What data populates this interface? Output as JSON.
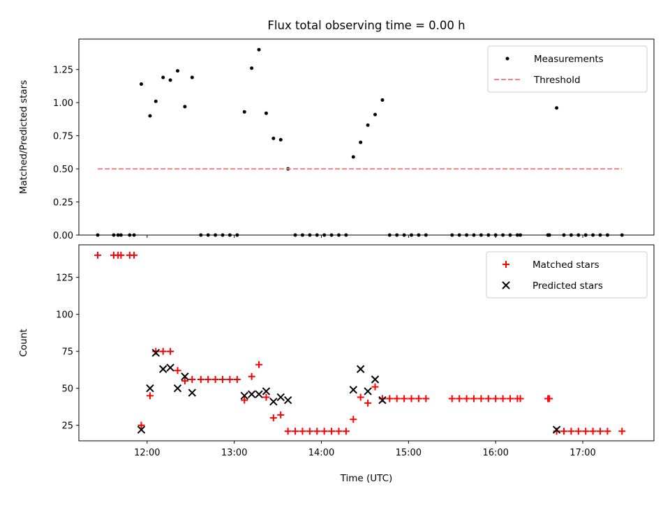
{
  "figure_title": "Flux total observing time = 0.00 h",
  "chart_data": [
    {
      "type": "scatter",
      "title": "Flux total observing time = 0.00 h",
      "ylabel": "Matched/Predicted stars",
      "xlabel": "",
      "xlim": [
        "11:13",
        "17:49"
      ],
      "ylim": [
        0,
        1.48
      ],
      "yticks": [
        0.0,
        0.25,
        0.5,
        0.75,
        1.0,
        1.25
      ],
      "ytick_labels": [
        "0.00",
        "0.25",
        "0.50",
        "0.75",
        "1.00",
        "1.25"
      ],
      "xticks": [
        "12:00",
        "13:00",
        "14:00",
        "15:00",
        "16:00",
        "17:00"
      ],
      "show_xtick_labels": false,
      "legend": {
        "placement": "upper right",
        "entries": [
          "Measurements",
          "Threshold"
        ]
      },
      "grid": false,
      "series": [
        {
          "name": "Measurements",
          "style": "dot",
          "color": "#000000",
          "points": [
            [
              "11:26",
              0
            ],
            [
              "11:37",
              0
            ],
            [
              "11:40",
              0
            ],
            [
              "11:42",
              0
            ],
            [
              "11:48",
              0
            ],
            [
              "11:51",
              0
            ],
            [
              "11:56",
              1.14
            ],
            [
              "12:02",
              0.9
            ],
            [
              "12:06",
              1.01
            ],
            [
              "12:11",
              1.19
            ],
            [
              "12:16",
              1.17
            ],
            [
              "12:21",
              1.24
            ],
            [
              "12:26",
              0.97
            ],
            [
              "12:31",
              1.19
            ],
            [
              "12:37",
              0
            ],
            [
              "12:42",
              0
            ],
            [
              "12:47",
              0
            ],
            [
              "12:52",
              0
            ],
            [
              "12:57",
              0
            ],
            [
              "13:02",
              0
            ],
            [
              "13:07",
              0.93
            ],
            [
              "13:12",
              1.26
            ],
            [
              "13:17",
              1.4
            ],
            [
              "13:22",
              0.92
            ],
            [
              "13:27",
              0.73
            ],
            [
              "13:32",
              0.72
            ],
            [
              "13:37",
              0.5
            ],
            [
              "13:42",
              0
            ],
            [
              "13:47",
              0
            ],
            [
              "13:52",
              0
            ],
            [
              "13:57",
              0
            ],
            [
              "14:02",
              0
            ],
            [
              "14:07",
              0
            ],
            [
              "14:12",
              0
            ],
            [
              "14:17",
              0
            ],
            [
              "14:22",
              0.59
            ],
            [
              "14:27",
              0.7
            ],
            [
              "14:32",
              0.83
            ],
            [
              "14:37",
              0.91
            ],
            [
              "14:42",
              1.02
            ],
            [
              "14:47",
              0
            ],
            [
              "14:52",
              0
            ],
            [
              "14:57",
              0
            ],
            [
              "15:02",
              0
            ],
            [
              "15:07",
              0
            ],
            [
              "15:12",
              0
            ],
            [
              "15:30",
              0
            ],
            [
              "15:35",
              0
            ],
            [
              "15:40",
              0
            ],
            [
              "15:45",
              0
            ],
            [
              "15:50",
              0
            ],
            [
              "15:55",
              0
            ],
            [
              "16:00",
              0
            ],
            [
              "16:05",
              0
            ],
            [
              "16:10",
              0
            ],
            [
              "16:15",
              0
            ],
            [
              "16:17",
              0
            ],
            [
              "16:36",
              0
            ],
            [
              "16:37",
              0
            ],
            [
              "16:42",
              0.96
            ],
            [
              "16:47",
              0
            ],
            [
              "16:52",
              0
            ],
            [
              "16:57",
              0
            ],
            [
              "17:02",
              0
            ],
            [
              "17:07",
              0
            ],
            [
              "17:12",
              0
            ],
            [
              "17:17",
              0
            ],
            [
              "17:27",
              0
            ]
          ]
        },
        {
          "name": "Threshold",
          "style": "dashed-line",
          "color": "#ff8080",
          "points": [
            [
              "11:26",
              0.5
            ],
            [
              "17:27",
              0.5
            ]
          ]
        }
      ]
    },
    {
      "type": "scatter",
      "title": "",
      "ylabel": "Count",
      "xlabel": "Time (UTC)",
      "xlim": [
        "11:13",
        "17:49"
      ],
      "ylim": [
        14.5,
        147
      ],
      "yticks": [
        25,
        50,
        75,
        100,
        125
      ],
      "ytick_labels": [
        "25",
        "50",
        "75",
        "100",
        "125"
      ],
      "xticks": [
        "12:00",
        "13:00",
        "14:00",
        "15:00",
        "16:00",
        "17:00"
      ],
      "xtick_labels": [
        "12:00",
        "13:00",
        "14:00",
        "15:00",
        "16:00",
        "17:00"
      ],
      "legend": {
        "placement": "upper right",
        "entries": [
          "Matched stars",
          "Predicted stars"
        ]
      },
      "grid": false,
      "series": [
        {
          "name": "Matched stars",
          "style": "plus",
          "color": "#ff0000",
          "points": [
            [
              "11:26",
              140
            ],
            [
              "11:37",
              140
            ],
            [
              "11:40",
              140
            ],
            [
              "11:42",
              140
            ],
            [
              "11:48",
              140
            ],
            [
              "11:51",
              140
            ],
            [
              "11:56",
              25
            ],
            [
              "12:02",
              45
            ],
            [
              "12:06",
              75
            ],
            [
              "12:11",
              75
            ],
            [
              "12:16",
              75
            ],
            [
              "12:21",
              62
            ],
            [
              "12:26",
              55
            ],
            [
              "12:31",
              56
            ],
            [
              "12:37",
              56
            ],
            [
              "12:42",
              56
            ],
            [
              "12:47",
              56
            ],
            [
              "12:52",
              56
            ],
            [
              "12:57",
              56
            ],
            [
              "13:02",
              56
            ],
            [
              "13:07",
              42
            ],
            [
              "13:12",
              58
            ],
            [
              "13:17",
              66
            ],
            [
              "13:22",
              44
            ],
            [
              "13:27",
              30
            ],
            [
              "13:32",
              32
            ],
            [
              "13:37",
              21
            ],
            [
              "13:42",
              21
            ],
            [
              "13:47",
              21
            ],
            [
              "13:52",
              21
            ],
            [
              "13:57",
              21
            ],
            [
              "14:02",
              21
            ],
            [
              "14:07",
              21
            ],
            [
              "14:12",
              21
            ],
            [
              "14:17",
              21
            ],
            [
              "14:22",
              29
            ],
            [
              "14:27",
              44
            ],
            [
              "14:32",
              40
            ],
            [
              "14:37",
              51
            ],
            [
              "14:42",
              43
            ],
            [
              "14:47",
              43
            ],
            [
              "14:52",
              43
            ],
            [
              "14:57",
              43
            ],
            [
              "15:02",
              43
            ],
            [
              "15:07",
              43
            ],
            [
              "15:12",
              43
            ],
            [
              "15:30",
              43
            ],
            [
              "15:35",
              43
            ],
            [
              "15:40",
              43
            ],
            [
              "15:45",
              43
            ],
            [
              "15:50",
              43
            ],
            [
              "15:55",
              43
            ],
            [
              "16:00",
              43
            ],
            [
              "16:05",
              43
            ],
            [
              "16:10",
              43
            ],
            [
              "16:15",
              43
            ],
            [
              "16:17",
              43
            ],
            [
              "16:36",
              43
            ],
            [
              "16:37",
              43
            ],
            [
              "16:42",
              21
            ],
            [
              "16:47",
              21
            ],
            [
              "16:52",
              21
            ],
            [
              "16:57",
              21
            ],
            [
              "17:02",
              21
            ],
            [
              "17:07",
              21
            ],
            [
              "17:12",
              21
            ],
            [
              "17:17",
              21
            ],
            [
              "17:27",
              21
            ]
          ]
        },
        {
          "name": "Predicted stars",
          "style": "cross",
          "color": "#000000",
          "points": [
            [
              "11:56",
              22
            ],
            [
              "12:02",
              50
            ],
            [
              "12:06",
              74
            ],
            [
              "12:11",
              63
            ],
            [
              "12:16",
              64
            ],
            [
              "12:21",
              50
            ],
            [
              "12:26",
              58
            ],
            [
              "12:31",
              47
            ],
            [
              "13:07",
              45
            ],
            [
              "13:12",
              46
            ],
            [
              "13:17",
              46
            ],
            [
              "13:22",
              48
            ],
            [
              "13:27",
              41
            ],
            [
              "13:32",
              44
            ],
            [
              "13:37",
              42
            ],
            [
              "14:22",
              49
            ],
            [
              "14:27",
              63
            ],
            [
              "14:32",
              48
            ],
            [
              "14:37",
              56
            ],
            [
              "14:42",
              42
            ],
            [
              "16:42",
              22
            ]
          ]
        }
      ]
    }
  ]
}
